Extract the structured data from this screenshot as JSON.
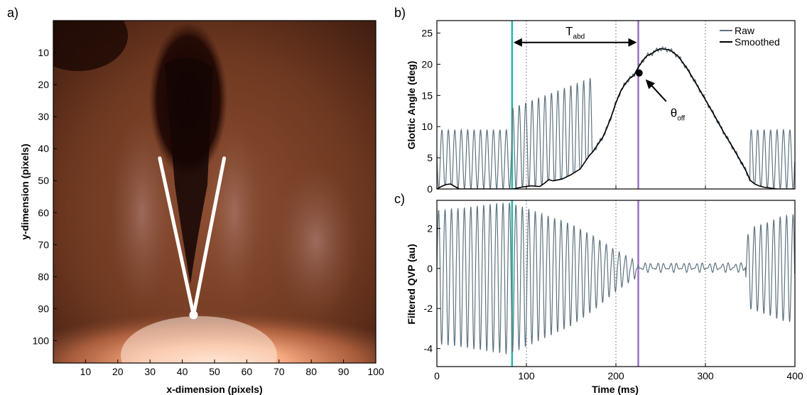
{
  "panel_labels": {
    "a": "a)",
    "b": "b)",
    "c": "c)"
  },
  "colors": {
    "raw": "#5f7480",
    "smoothed": "#000000",
    "onset_line": "#29b9a6",
    "offset_line": "#9a72c2",
    "angle_lines": "#ffffff"
  },
  "chart_data": [
    {
      "panel": "a",
      "type": "heatmap",
      "xlabel": "x-dimension (pixels)",
      "ylabel": "y-dimension (pixels)",
      "xlim": [
        0,
        100
      ],
      "ylim": [
        107,
        0
      ],
      "xticks": [
        10,
        20,
        30,
        40,
        50,
        60,
        70,
        80,
        90,
        100
      ],
      "yticks": [
        10,
        20,
        30,
        40,
        50,
        60,
        70,
        80,
        90,
        100
      ],
      "angle_lines": [
        {
          "from": [
            33,
            43
          ],
          "to": [
            43.5,
            92
          ]
        },
        {
          "from": [
            53,
            43
          ],
          "to": [
            43.5,
            92
          ]
        }
      ],
      "vertex": [
        43.5,
        92
      ]
    },
    {
      "panel": "b",
      "type": "line",
      "xlabel": "",
      "ylabel": "Glottic Angle (deg)",
      "xlim": [
        0,
        400
      ],
      "ylim": [
        0,
        27
      ],
      "yticks": [
        0,
        5,
        10,
        15,
        20,
        25
      ],
      "series": [
        {
          "name": "Raw"
        },
        {
          "name": "Smoothed",
          "x": [
            0,
            5,
            10,
            15,
            20,
            25,
            85,
            95,
            105,
            115,
            120,
            125,
            130,
            140,
            150,
            160,
            170,
            175,
            180,
            185,
            190,
            195,
            200,
            205,
            210,
            215,
            220,
            225,
            230,
            235,
            240,
            245,
            250,
            255,
            260,
            265,
            270,
            280,
            290,
            300,
            310,
            320,
            330,
            340,
            345,
            350,
            355,
            360,
            365,
            370,
            375,
            380,
            400
          ],
          "y": [
            0,
            0.4,
            0.7,
            0.8,
            0.4,
            0,
            0,
            0.3,
            0.5,
            0.4,
            0.9,
            1.5,
            1.3,
            1.6,
            2.3,
            3.2,
            5.3,
            6.1,
            7.2,
            8.2,
            9.8,
            11.7,
            13.8,
            15.6,
            16.8,
            17.7,
            18.2,
            19.5,
            20.6,
            21.4,
            21.7,
            22.2,
            22.5,
            22.4,
            22.3,
            21.8,
            21.2,
            19.2,
            16.8,
            14.3,
            11.8,
            9.2,
            6.8,
            4.3,
            3,
            1.4,
            0.8,
            0.5,
            0.3,
            0.2,
            0.1,
            0,
            0
          ]
        }
      ],
      "markers": {
        "onset_x": 84,
        "offset_x": 225
      },
      "theta_off_point": {
        "x": 226,
        "y": 18.6
      },
      "annotations": {
        "t_main": "T",
        "t_sub": "abd",
        "theta_main": "θ",
        "theta_sub": "off"
      }
    },
    {
      "panel": "c",
      "type": "line",
      "xlabel": "Time (ms)",
      "ylabel": "Filtered QVP (au)",
      "xlim": [
        0,
        400
      ],
      "ylim": [
        -4.9,
        3.4
      ],
      "xticks": [
        0,
        100,
        200,
        300,
        400
      ],
      "yticks": [
        -4,
        -2,
        0,
        2
      ],
      "series": [
        {
          "name": "Filtered QVP"
        }
      ],
      "markers": {
        "onset_x": 84,
        "offset_x": 225
      }
    }
  ]
}
